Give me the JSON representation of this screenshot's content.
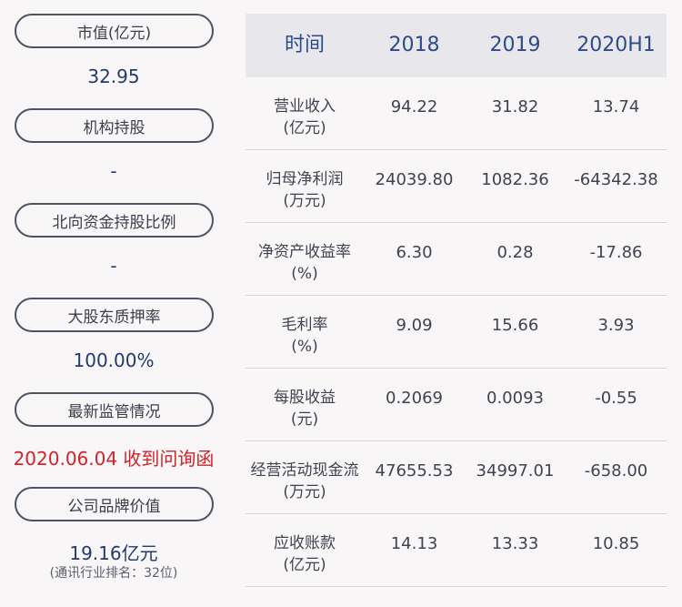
{
  "sidebar": {
    "items": [
      {
        "label": "市值(亿元)",
        "value": "32.95"
      },
      {
        "label": "机构持股",
        "value": "-"
      },
      {
        "label": "北向资金持股比例",
        "value": "-"
      },
      {
        "label": "大股东质押率",
        "value": "100.00%"
      },
      {
        "label": "最新监管情况",
        "value": "2020.06.04 收到问询函"
      },
      {
        "label": "公司品牌价值",
        "value": "19.16亿元",
        "sub": "(通讯行业排名：32位)"
      }
    ]
  },
  "table": {
    "headers": [
      "时间",
      "2018",
      "2019",
      "2020H1"
    ],
    "rows": [
      {
        "name": "营业收入",
        "unit": "(亿元)",
        "values": [
          "94.22",
          "31.82",
          "13.74"
        ]
      },
      {
        "name": "归母净利润",
        "unit": "(万元)",
        "values": [
          "24039.80",
          "1082.36",
          "-64342.38"
        ]
      },
      {
        "name": "净资产收益率",
        "unit": "(%)",
        "values": [
          "6.30",
          "0.28",
          "-17.86"
        ]
      },
      {
        "name": "毛利率",
        "unit": "(%)",
        "values": [
          "9.09",
          "15.66",
          "3.93"
        ]
      },
      {
        "name": "每股收益",
        "unit": "(元)",
        "values": [
          "0.2069",
          "0.0093",
          "-0.55"
        ]
      },
      {
        "name": "经营活动现金流",
        "unit": "(万元)",
        "values": [
          "47655.53",
          "34997.01",
          "-658.00"
        ]
      },
      {
        "name": "应收账款",
        "unit": "(亿元)",
        "values": [
          "14.13",
          "13.33",
          "10.85"
        ]
      }
    ]
  },
  "colors": {
    "background": "#f9f6f7",
    "header_bg": "#e8e7ec",
    "header_text": "#2d4b8c",
    "value_text": "#233a6d",
    "alert_text": "#d2232a"
  }
}
